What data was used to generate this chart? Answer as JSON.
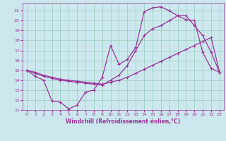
{
  "xlabel": "Windchill (Refroidissement éolien,°C)",
  "bg_color": "#cce8ee",
  "grid_color": "#99ccbb",
  "line_color": "#993399",
  "xlim": [
    -0.5,
    23.5
  ],
  "ylim": [
    11,
    21.8
  ],
  "xticks": [
    0,
    1,
    2,
    3,
    4,
    5,
    6,
    7,
    8,
    9,
    10,
    11,
    12,
    13,
    14,
    15,
    16,
    17,
    18,
    19,
    20,
    21,
    22,
    23
  ],
  "yticks": [
    11,
    12,
    13,
    14,
    15,
    16,
    17,
    18,
    19,
    20,
    21
  ],
  "line1_x": [
    0,
    1,
    2,
    3,
    4,
    5,
    6,
    7,
    8,
    9,
    10,
    11,
    12,
    13,
    14,
    15,
    16,
    17,
    18,
    19,
    20,
    21,
    22,
    23
  ],
  "line1_y": [
    15.0,
    14.4,
    14.0,
    11.9,
    11.8,
    11.1,
    11.5,
    12.8,
    13.0,
    14.3,
    17.5,
    15.6,
    16.1,
    17.3,
    20.9,
    21.3,
    21.4,
    21.0,
    20.5,
    20.1,
    20.0,
    16.8,
    15.2,
    14.8
  ],
  "line2_x": [
    0,
    1,
    2,
    3,
    4,
    5,
    6,
    7,
    8,
    9,
    10,
    11,
    12,
    13,
    14,
    15,
    16,
    17,
    18,
    19,
    20,
    21,
    22,
    23
  ],
  "line2_y": [
    15.0,
    14.8,
    14.5,
    14.3,
    14.1,
    14.0,
    13.9,
    13.8,
    13.7,
    13.6,
    13.8,
    14.0,
    14.3,
    14.7,
    15.1,
    15.5,
    15.9,
    16.3,
    16.7,
    17.1,
    17.5,
    17.9,
    18.3,
    14.8
  ],
  "line3_x": [
    0,
    1,
    2,
    3,
    4,
    5,
    6,
    7,
    8,
    9,
    10,
    11,
    12,
    13,
    14,
    15,
    16,
    17,
    18,
    19,
    20,
    21,
    22,
    23
  ],
  "line3_y": [
    15.0,
    14.7,
    14.4,
    14.2,
    14.0,
    13.9,
    13.8,
    13.7,
    13.6,
    13.5,
    14.0,
    14.5,
    15.5,
    17.0,
    18.5,
    19.2,
    19.5,
    20.0,
    20.5,
    20.5,
    19.5,
    18.5,
    16.8,
    14.8
  ]
}
